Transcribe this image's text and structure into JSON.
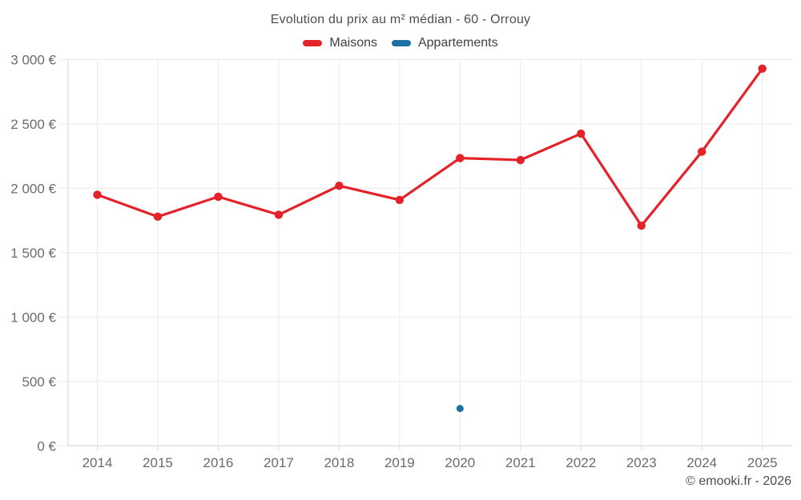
{
  "header": {
    "title": "Evolution du prix au m² médian - 60 - Orrouy"
  },
  "legend": {
    "items": [
      {
        "label": "Maisons",
        "color": "#e32329"
      },
      {
        "label": "Appartements",
        "color": "#1d70a5"
      }
    ]
  },
  "footer": {
    "credit": "© emooki.fr - 2026"
  },
  "chart_data": {
    "type": "line",
    "title": "Evolution du prix au m² médian - 60 - Orrouy",
    "categories": [
      2014,
      2015,
      2016,
      2017,
      2018,
      2019,
      2020,
      2021,
      2022,
      2023,
      2024,
      2025
    ],
    "series": [
      {
        "name": "Maisons",
        "color": "#e32329",
        "marker_radius": 5.2,
        "line_width": 3.2,
        "values": [
          1950,
          1780,
          1935,
          1795,
          2020,
          1910,
          2235,
          2220,
          2425,
          1710,
          2285,
          2930
        ]
      },
      {
        "name": "Appartements",
        "color": "#1d70a5",
        "marker_radius": 4.5,
        "line_width": 3.2,
        "values": [
          null,
          null,
          null,
          null,
          null,
          null,
          290,
          null,
          null,
          null,
          null,
          null
        ]
      }
    ],
    "xlabel": "",
    "ylabel": "",
    "ylim": [
      0,
      3000
    ],
    "ytick_step": 500,
    "ytick_labels": [
      "0 €",
      "500 €",
      "1 000 €",
      "1 500 €",
      "2 000 €",
      "2 500 €",
      "3 000 €"
    ],
    "currency": "€",
    "grid": true,
    "legend_position": "top"
  }
}
